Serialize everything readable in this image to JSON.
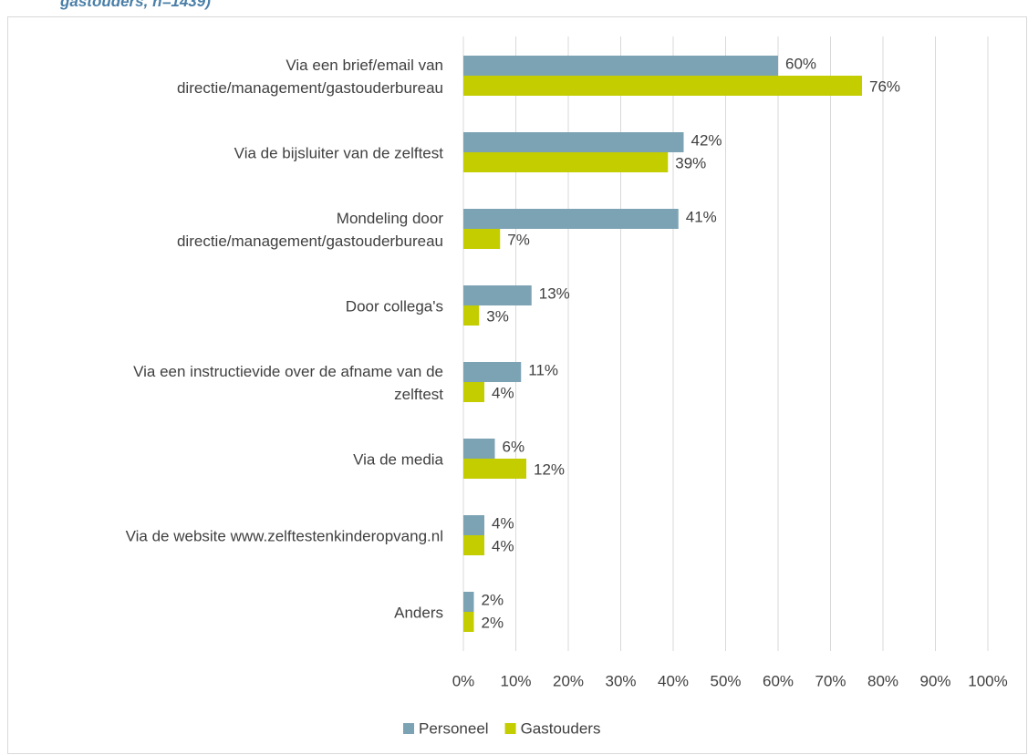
{
  "chart_data": {
    "type": "bar",
    "orientation": "horizontal",
    "subtitle": "gastouders, n=1439)",
    "categories": [
      "Via een brief/email van\ndirectie/management/gastouderbureau",
      "Via de bijsluiter van de zelftest",
      "Mondeling door\ndirectie/management/gastouderbureau",
      "Door collega's",
      "Via een instructievide over de afname van de\nzelftest",
      "Via de media",
      "Via de website www.zelftestenkinderopvang.nl",
      "Anders"
    ],
    "series": [
      {
        "name": "Personeel",
        "color": "#7ca3b4",
        "values": [
          60,
          42,
          41,
          13,
          11,
          6,
          4,
          2
        ],
        "value_labels": [
          "60%",
          "42%",
          "41%",
          "13%",
          "11%",
          "6%",
          "4%",
          "2%"
        ]
      },
      {
        "name": "Gastouders",
        "color": "#c3cd00",
        "values": [
          76,
          39,
          7,
          3,
          4,
          12,
          4,
          2
        ],
        "value_labels": [
          "76%",
          "39%",
          "7%",
          "3%",
          "4%",
          "12%",
          "4%",
          "2%"
        ]
      }
    ],
    "xlim": [
      0,
      100
    ],
    "xticks": [
      {
        "value": 0,
        "label": "0%"
      },
      {
        "value": 10,
        "label": "10%"
      },
      {
        "value": 20,
        "label": "20%"
      },
      {
        "value": 30,
        "label": "30%"
      },
      {
        "value": 40,
        "label": "40%"
      },
      {
        "value": 50,
        "label": "50%"
      },
      {
        "value": 60,
        "label": "60%"
      },
      {
        "value": 70,
        "label": "70%"
      },
      {
        "value": 80,
        "label": "80%"
      },
      {
        "value": 90,
        "label": "90%"
      },
      {
        "value": 100,
        "label": "100%"
      }
    ],
    "grid": true,
    "legend": "bottom"
  }
}
